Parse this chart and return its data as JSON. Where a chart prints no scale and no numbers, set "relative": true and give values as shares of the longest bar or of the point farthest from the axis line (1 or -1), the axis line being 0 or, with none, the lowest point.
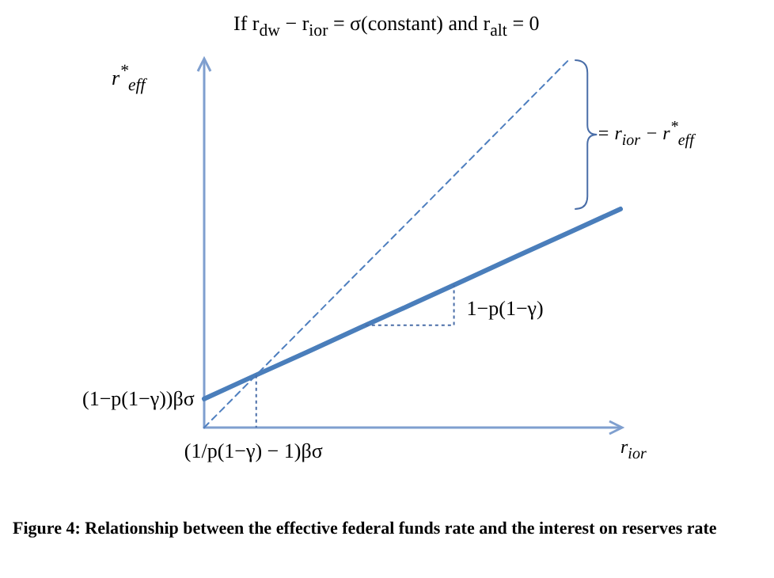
{
  "chart_data": {
    "type": "line",
    "title": "If r$_{dw}$ − r$_{ior}$ = σ(constant) and r$_{alt}$ = 0",
    "xlabel": "r$_{ior}$",
    "ylabel": "r$^{*}$$_{eff}$",
    "relative": true,
    "grid": false,
    "marker": "none",
    "categories": [
      null,
      null,
      null,
      null,
      null,
      null,
      null,
      null,
      null
    ],
    "series": [
      {
        "color": "#4f7fbf",
        "values": [
          0,
          0.143,
          0.286,
          0.429,
          0.571,
          0.714,
          0.857,
          1,
          null
        ],
        "line_style": "dashed"
      },
      {
        "color": "#4a7ebb",
        "values": [
          0.078,
          0.143,
          0.207,
          0.272,
          0.336,
          0.401,
          0.466,
          0.53,
          0.595
        ],
        "line_style": "solid"
      }
    ],
    "annotations": [
      "(1−p(1−γ))βσ",
      "(1/p(1−γ) − 1)βσ",
      "1−p(1−γ)",
      "= r$_{ior}$ − r$^{*}$$_{eff}$",
      "Figure 4: Relationship between the effective federal funds rate and the interest on reserves rate"
    ]
  }
}
